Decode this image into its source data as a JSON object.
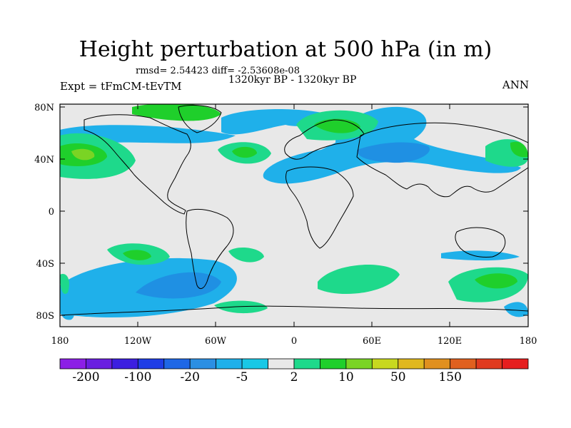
{
  "header": {
    "title": "Height perturbation at 500 hPa (in m)",
    "stats": "rmsd= 2.54423 diff= -2.53608e-08",
    "period": "1320kyr BP - 1320kyr BP",
    "experiment": "Expt = tFmCM-tEvTM",
    "season": "ANN"
  },
  "map": {
    "projection": "cylindrical equidistant",
    "lon_range": [
      -180,
      180
    ],
    "lat_range": [
      -90,
      90
    ],
    "x_tick_labels": [
      "180",
      "120W",
      "60W",
      "0",
      "60E",
      "120E",
      "180"
    ],
    "y_tick_labels": [
      "80N",
      "40N",
      "0",
      "40S",
      "80S"
    ],
    "background_color": "#e8e8e8",
    "coastline_color": "#000000"
  },
  "colorbar": {
    "colors": [
      "#8c1fe6",
      "#6a1fe0",
      "#3c1fe0",
      "#1f3de6",
      "#1f67e6",
      "#2b8fe3",
      "#1fb0ea",
      "#19c8e6",
      "#e8e8e8",
      "#1ed98b",
      "#1fcf2b",
      "#7ad424",
      "#c8d81f",
      "#e0b81f",
      "#e0901f",
      "#e0601f",
      "#e03a1f",
      "#e61f1f"
    ],
    "labels": [
      "-200",
      "-100",
      "-20",
      "-5",
      "2",
      "10",
      "50",
      "150"
    ]
  }
}
